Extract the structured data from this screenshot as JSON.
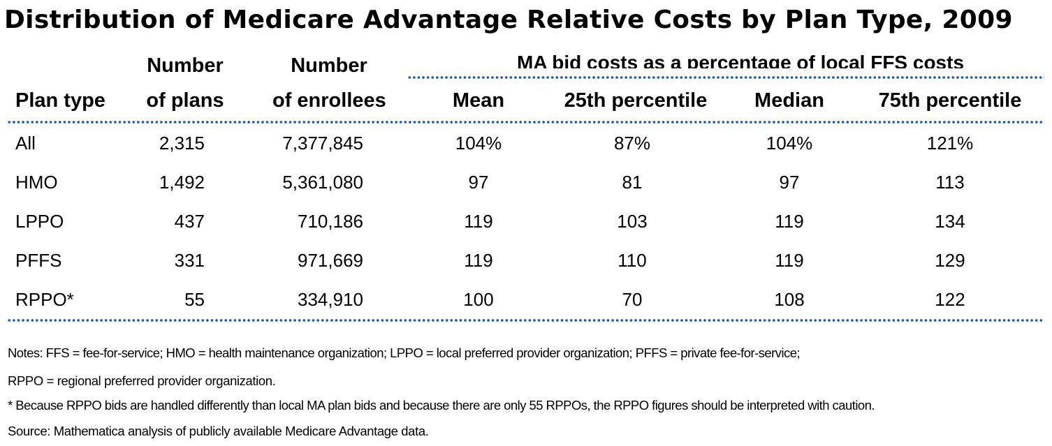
{
  "title": "Distribution of Medicare Advantage Relative Costs by Plan Type, 2009",
  "spanning_header": "MA bid costs as a percentage of local FFS costs",
  "headers": {
    "plan_type": "Plan type",
    "num_plans": [
      "Number",
      "of plans"
    ],
    "num_enrollees": [
      "Number",
      "of enrollees"
    ],
    "mean": "Mean",
    "p25": "25th percentile",
    "median": "Median",
    "p75": "75th percentile"
  },
  "rows": [
    [
      "All",
      "2,315",
      "7,377,845",
      "104%",
      "87%",
      "104%",
      "121%"
    ],
    [
      "HMO",
      "1,492",
      "5,361,080",
      "97",
      "81",
      "97",
      "113"
    ],
    [
      "LPPO",
      "437",
      "710,186",
      "119",
      "103",
      "119",
      "134"
    ],
    [
      "PFFS",
      "331",
      "971,669",
      "119",
      "110",
      "119",
      "129"
    ],
    [
      "RPPO*",
      "55",
      "334,910",
      "100",
      "70",
      "108",
      "122"
    ]
  ],
  "notes": [
    "Notes: FFS = fee-for-service; HMO = health maintenance organization; LPPO = local preferred provider organization; PFFS = private fee-for-service;",
    "RPPO = regional preferred provider organization.",
    "* Because RPPO bids are handled differently than local MA plan bids and because there are only 55 RPPOs, the RPPO figures should be interpreted with caution.",
    "Source: Mathematica analysis of publicly available Medicare Advantage data."
  ]
}
